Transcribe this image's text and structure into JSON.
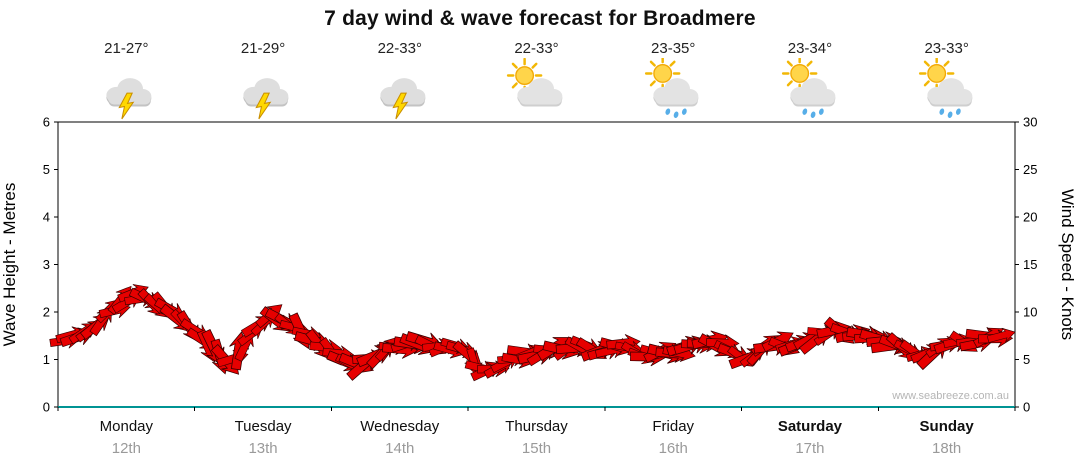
{
  "title": "7 day wind & wave forecast for Broadmere",
  "watermark": "www.seabreeze.com.au",
  "colors": {
    "band": "#e60000",
    "band_outline": "#3a0000",
    "baseline": "#009494",
    "date_text": "#9a9a9a"
  },
  "axes": {
    "left_label": "Wave Height - Metres",
    "right_label": "Wind Speed - Knots",
    "left_ticks": [
      0,
      1,
      2,
      3,
      4,
      5,
      6
    ],
    "right_ticks": [
      0,
      5,
      10,
      15,
      20,
      25,
      30
    ]
  },
  "days": [
    {
      "name": "Monday",
      "date": "12th",
      "temp": "21-27°",
      "icon": "storm",
      "bold": false
    },
    {
      "name": "Tuesday",
      "date": "13th",
      "temp": "21-29°",
      "icon": "storm",
      "bold": false
    },
    {
      "name": "Wednesday",
      "date": "14th",
      "temp": "22-33°",
      "icon": "storm",
      "bold": false
    },
    {
      "name": "Thursday",
      "date": "15th",
      "temp": "22-33°",
      "icon": "sun-cloud",
      "bold": false
    },
    {
      "name": "Friday",
      "date": "16th",
      "temp": "23-35°",
      "icon": "sun-cloud-rain",
      "bold": false
    },
    {
      "name": "Saturday",
      "date": "17th",
      "temp": "23-34°",
      "icon": "sun-cloud-rain",
      "bold": true
    },
    {
      "name": "Sunday",
      "date": "18th",
      "temp": "23-33°",
      "icon": "sun-cloud-rain",
      "bold": true
    }
  ],
  "chart_data": {
    "type": "area",
    "subtype": "wind-arrow-band",
    "title": "7 day wind & wave forecast for Broadmere",
    "xlabel": "",
    "ylabel_left": "Wave Height - Metres",
    "ylabel_right": "Wind Speed - Knots",
    "ylim_left": [
      0,
      6
    ],
    "ylim_right": [
      0,
      30
    ],
    "grid": "off",
    "legend": "none",
    "x_categories": [
      "Monday 12th",
      "Tuesday 13th",
      "Wednesday 14th",
      "Thursday 15th",
      "Friday 16th",
      "Saturday 17th",
      "Sunday 18th"
    ],
    "series": [
      {
        "name": "Wind speed (red arrow band, right axis, knots)",
        "axis": "right",
        "x_days": [
          0.0,
          0.16,
          0.31,
          0.45,
          0.56,
          0.71,
          0.82,
          0.93,
          1.04,
          1.15,
          1.26,
          1.37,
          1.48,
          1.55,
          1.66,
          1.77,
          1.88,
          1.99,
          2.1,
          2.21,
          2.32,
          2.43,
          2.54,
          2.65,
          2.79,
          2.9,
          3.01,
          3.09,
          3.2,
          3.31,
          3.42,
          3.53,
          3.67,
          3.82,
          3.97,
          4.11,
          4.26,
          4.4,
          4.55,
          4.7,
          4.81,
          4.92,
          5.03,
          5.14,
          5.25,
          5.36,
          5.46,
          5.57,
          5.68,
          5.79,
          5.9,
          6.01,
          6.12,
          6.23,
          6.34,
          6.45,
          6.56,
          6.67,
          6.78,
          6.89,
          6.99
        ],
        "values_knots": [
          7.0,
          7.5,
          9.0,
          11.0,
          11.8,
          11.0,
          10.5,
          8.5,
          7.5,
          6.0,
          4.5,
          6.5,
          8.8,
          9.5,
          9.0,
          8.0,
          6.8,
          6.0,
          5.0,
          4.5,
          5.3,
          6.0,
          6.5,
          6.8,
          6.5,
          6.3,
          5.5,
          4.0,
          4.3,
          5.0,
          5.5,
          5.8,
          6.0,
          6.3,
          6.0,
          6.5,
          5.5,
          5.8,
          6.0,
          6.5,
          6.8,
          6.0,
          5.0,
          6.0,
          6.8,
          6.5,
          7.0,
          7.5,
          8.3,
          7.5,
          7.3,
          7.0,
          6.5,
          5.8,
          5.3,
          6.3,
          7.0,
          6.8,
          7.3,
          7.5,
          7.3
        ]
      }
    ]
  }
}
